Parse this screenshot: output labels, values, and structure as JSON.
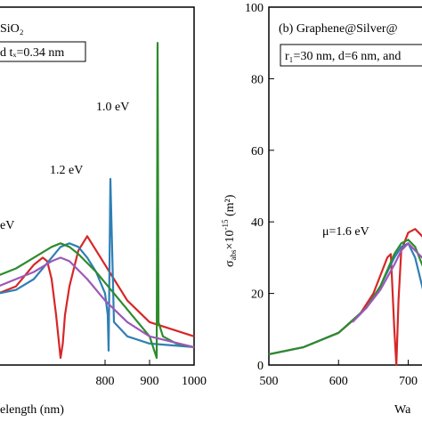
{
  "chart_data": [
    {
      "type": "line",
      "panel": "a",
      "title_fragment": "SiO₂",
      "param_fragment": "d tₓ=0.34 nm",
      "xlabel": "elength (nm)",
      "xlim": [
        560,
        1000
      ],
      "x_ticks": [
        "800",
        "900",
        "1000"
      ],
      "annotations": [
        "1.0 eV",
        "1.2 eV",
        "eV"
      ],
      "series": [
        {
          "color": "#d62728",
          "x": [
            560,
            600,
            640,
            660,
            670,
            680,
            690,
            700,
            705,
            710,
            720,
            740,
            760,
            800,
            850,
            900,
            1000
          ],
          "y": [
            20,
            22,
            28,
            30,
            29,
            24,
            14,
            2,
            6,
            14,
            22,
            32,
            36,
            28,
            18,
            12,
            8
          ]
        },
        {
          "color": "#2f7fb5",
          "x": [
            560,
            600,
            640,
            680,
            700,
            720,
            740,
            760,
            780,
            800,
            806,
            808,
            812,
            820,
            850,
            900,
            1000
          ],
          "y": [
            20,
            21,
            24,
            30,
            33,
            34,
            33,
            30,
            26,
            20,
            14,
            4,
            52,
            12,
            8,
            6,
            5
          ]
        },
        {
          "color": "#2e8b2e",
          "x": [
            560,
            600,
            640,
            680,
            700,
            720,
            740,
            780,
            820,
            860,
            900,
            916,
            918,
            920,
            930,
            960,
            1000
          ],
          "y": [
            25,
            27,
            30,
            33,
            34,
            33,
            31,
            26,
            20,
            14,
            8,
            2,
            90,
            12,
            8,
            6,
            5
          ]
        },
        {
          "color": "#9b59b6",
          "x": [
            560,
            600,
            640,
            680,
            700,
            720,
            760,
            800,
            850,
            900,
            1000
          ],
          "y": [
            22,
            24,
            26,
            29,
            30,
            29,
            24,
            18,
            12,
            8,
            5
          ]
        }
      ]
    },
    {
      "type": "line",
      "panel": "b",
      "title": "(b) Graphene@Silver@",
      "param_text": "r₁=30 nm, d=6 nm, and",
      "ylabel_main": "σ",
      "ylabel_sub": "abs",
      "ylabel_rest": "×10",
      "ylabel_exp": "-15",
      "ylabel_unit": " (m²)",
      "xlabel": "Wa",
      "xlim": [
        500,
        730
      ],
      "ylim": [
        0,
        100
      ],
      "x_ticks": [
        "500",
        "600",
        "700"
      ],
      "y_ticks": [
        "0",
        "20",
        "40",
        "60",
        "80",
        "100"
      ],
      "annotations": [
        "μ=1.6 eV"
      ],
      "series": [
        {
          "color": "#d62728",
          "x": [
            500,
            550,
            600,
            630,
            650,
            660,
            670,
            675,
            680,
            683,
            686,
            690,
            700,
            710,
            720,
            730
          ],
          "y": [
            3,
            5,
            9,
            14,
            20,
            25,
            30,
            31,
            10,
            0,
            18,
            32,
            37,
            38,
            36,
            32
          ]
        },
        {
          "color": "#2f7fb5",
          "x": [
            500,
            550,
            600,
            640,
            660,
            680,
            690,
            700,
            710,
            720,
            730
          ],
          "y": [
            3,
            5,
            9,
            16,
            22,
            30,
            33,
            34,
            30,
            22,
            14
          ]
        },
        {
          "color": "#2e8b2e",
          "x": [
            500,
            550,
            600,
            640,
            660,
            680,
            690,
            700,
            710,
            720,
            730
          ],
          "y": [
            3,
            5,
            9,
            16,
            22,
            31,
            34,
            35,
            33,
            28,
            24
          ]
        },
        {
          "color": "#9b59b6",
          "x": [
            620,
            640,
            660,
            680,
            690,
            700,
            710,
            720,
            730
          ],
          "y": [
            12,
            16,
            21,
            28,
            32,
            34,
            32,
            30,
            28
          ]
        }
      ]
    }
  ]
}
